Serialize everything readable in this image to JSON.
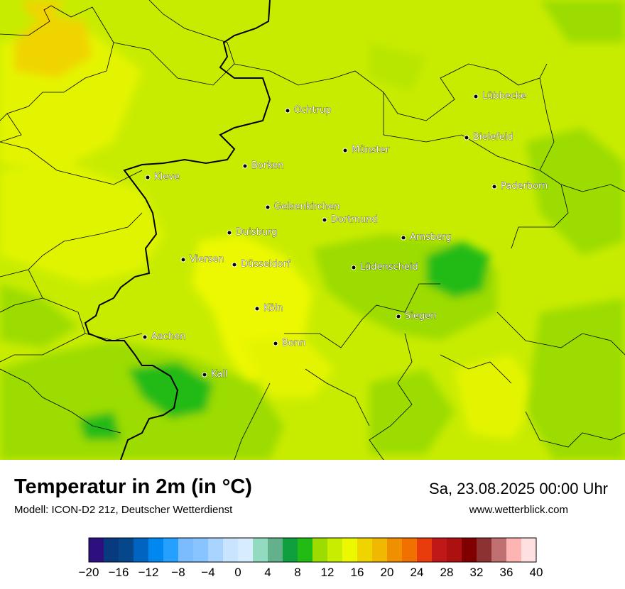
{
  "title": "Temperatur in 2m (in °C)",
  "model": "Modell: ICON-D2 21z, Deutscher Wetterdienst",
  "datetime": "Sa, 23.08.2025 00:00 Uhr",
  "website": "www.wetterblick.com",
  "cities": [
    {
      "name": "Ochtrup"
    },
    {
      "name": "Lübbecke"
    },
    {
      "name": "Bielefeld"
    },
    {
      "name": "Münster"
    },
    {
      "name": "Borken"
    },
    {
      "name": "Kleve"
    },
    {
      "name": "Paderborn"
    },
    {
      "name": "Gelsenkirchen"
    },
    {
      "name": "Dortmund"
    },
    {
      "name": "Duisburg"
    },
    {
      "name": "Arnsberg"
    },
    {
      "name": "Viersen"
    },
    {
      "name": "Düsseldorf"
    },
    {
      "name": "Lüdenscheid"
    },
    {
      "name": "Köln"
    },
    {
      "name": "Siegen"
    },
    {
      "name": "Aachen"
    },
    {
      "name": "Bonn"
    },
    {
      "name": "Kall"
    }
  ],
  "colorbar": {
    "ticks": [
      "−20",
      "−16",
      "−12",
      "−8",
      "−4",
      "0",
      "4",
      "8",
      "12",
      "16",
      "20",
      "24",
      "28",
      "32",
      "36",
      "40"
    ],
    "colors": [
      "#2e0f80",
      "#083a7f",
      "#06468a",
      "#0064c0",
      "#0088f0",
      "#26a0ff",
      "#7bbcff",
      "#88c4ff",
      "#a8d4ff",
      "#c8e4ff",
      "#d8ecff",
      "#93dbc0",
      "#63b18b",
      "#0f9f3f",
      "#22bb14",
      "#9cdc00",
      "#c8ed00",
      "#ecf800",
      "#f0d400",
      "#f0b800",
      "#f09000",
      "#f07000",
      "#e83c0c",
      "#c01818",
      "#ac1010",
      "#800000",
      "#8c3232",
      "#c07070",
      "#ffb4b4",
      "#ffe0e0"
    ]
  }
}
